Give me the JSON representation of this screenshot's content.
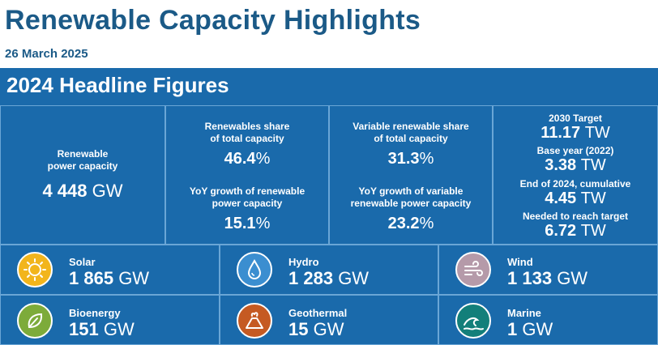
{
  "header": {
    "title": "Renewable Capacity Highlights",
    "date": "26 March 2025"
  },
  "section": {
    "title": "2024 Headline Figures"
  },
  "capacity": {
    "label_line1": "Renewable",
    "label_line2": "power capacity",
    "value": "4 448",
    "unit": "GW"
  },
  "share": {
    "label_line1": "Renewables share",
    "label_line2": "of total capacity",
    "value": "46.4",
    "unit": "%"
  },
  "growth": {
    "label_line1": "YoY growth of renewable",
    "label_line2": "power capacity",
    "value": "15.1",
    "unit": "%"
  },
  "variable_share": {
    "label_line1": "Variable renewable share",
    "label_line2": "of total capacity",
    "value": "31.3",
    "unit": "%"
  },
  "variable_growth": {
    "label_line1": "YoY growth of variable",
    "label_line2": "renewable power capacity",
    "value": "23.2",
    "unit": "%"
  },
  "targets": [
    {
      "label": "2030 Target",
      "value": "11.17",
      "unit": "TW"
    },
    {
      "label": "Base year (2022)",
      "value": "3.38",
      "unit": "TW"
    },
    {
      "label": "End of 2024, cumulative",
      "value": "4.45",
      "unit": "TW"
    },
    {
      "label": "Needed to reach target",
      "value": "6.72",
      "unit": "TW"
    }
  ],
  "technologies": [
    {
      "name": "Solar",
      "value": "1 865",
      "unit": "GW",
      "icon": "sun-icon",
      "color": "#f2b51c"
    },
    {
      "name": "Hydro",
      "value": "1 283",
      "unit": "GW",
      "icon": "water-drop-icon",
      "color": "#3b8ed0"
    },
    {
      "name": "Wind",
      "value": "1 133",
      "unit": "GW",
      "icon": "wind-icon",
      "color": "#b59aa9"
    },
    {
      "name": "Bioenergy",
      "value": "151",
      "unit": "GW",
      "icon": "leaf-icon",
      "color": "#7dab3a"
    },
    {
      "name": "Geothermal",
      "value": "15",
      "unit": "GW",
      "icon": "volcano-icon",
      "color": "#c55a22"
    },
    {
      "name": "Marine",
      "value": "1",
      "unit": "GW",
      "icon": "wave-icon",
      "color": "#137f7a"
    }
  ]
}
